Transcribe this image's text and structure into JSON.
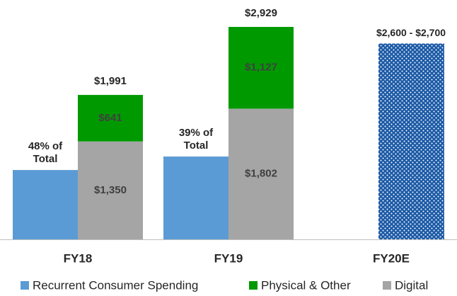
{
  "chart_data": {
    "type": "stacked-bar",
    "categories": [
      "FY18",
      "FY19",
      "FY20E"
    ],
    "side_series": {
      "name": "Recurrent Consumer Spending",
      "color": "#5b9bd5",
      "values": [
        956,
        1142,
        null
      ],
      "value_labels": [
        "48% of Total",
        "39% of Total",
        null
      ]
    },
    "series": [
      {
        "name": "Digital",
        "color": "#a5a5a5",
        "values": [
          1350,
          1802,
          null
        ],
        "value_labels": [
          "$1,350",
          "$1,802",
          null
        ]
      },
      {
        "name": "Physical & Other",
        "color": "#009a00",
        "values": [
          641,
          1127,
          null
        ],
        "value_labels": [
          "$641",
          "$1,127",
          null
        ]
      }
    ],
    "totals": [
      1991,
      2929,
      null
    ],
    "total_labels": [
      "$1,991",
      "$2,929",
      null
    ],
    "estimate": {
      "low": 2600,
      "high": 2700,
      "label": "$2,600 - $2,700",
      "color": "#1c5aa6"
    }
  }
}
